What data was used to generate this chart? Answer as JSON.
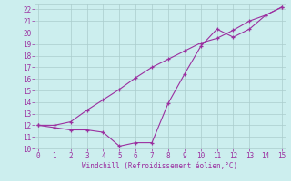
{
  "xlabel": "Windchill (Refroidissement éolien,°C)",
  "line1_x": [
    0,
    1,
    2,
    3,
    4,
    5,
    6,
    7,
    8,
    9,
    10,
    11,
    12,
    13,
    14,
    15
  ],
  "line1_y": [
    12,
    11.8,
    11.6,
    11.6,
    11.4,
    10.2,
    10.5,
    10.5,
    13.9,
    16.4,
    18.8,
    20.3,
    19.6,
    20.3,
    21.5,
    22.2
  ],
  "line2_x": [
    0,
    1,
    2,
    3,
    4,
    5,
    6,
    7,
    8,
    9,
    10,
    11,
    12,
    13,
    14,
    15
  ],
  "line2_y": [
    12,
    12,
    12.3,
    13.3,
    14.2,
    15.1,
    16.1,
    17.0,
    17.7,
    18.4,
    19.1,
    19.5,
    20.2,
    21.0,
    21.5,
    22.2
  ],
  "line_color": "#9b30a0",
  "xlim": [
    -0.2,
    15.2
  ],
  "ylim": [
    10,
    22.5
  ],
  "yticks": [
    10,
    11,
    12,
    13,
    14,
    15,
    16,
    17,
    18,
    19,
    20,
    21,
    22
  ],
  "xticks": [
    0,
    1,
    2,
    3,
    4,
    5,
    6,
    7,
    8,
    9,
    10,
    11,
    12,
    13,
    14,
    15
  ],
  "bg_color": "#cceeee",
  "grid_color": "#aacccc",
  "tick_color": "#9b30a0",
  "label_color": "#9b30a0"
}
